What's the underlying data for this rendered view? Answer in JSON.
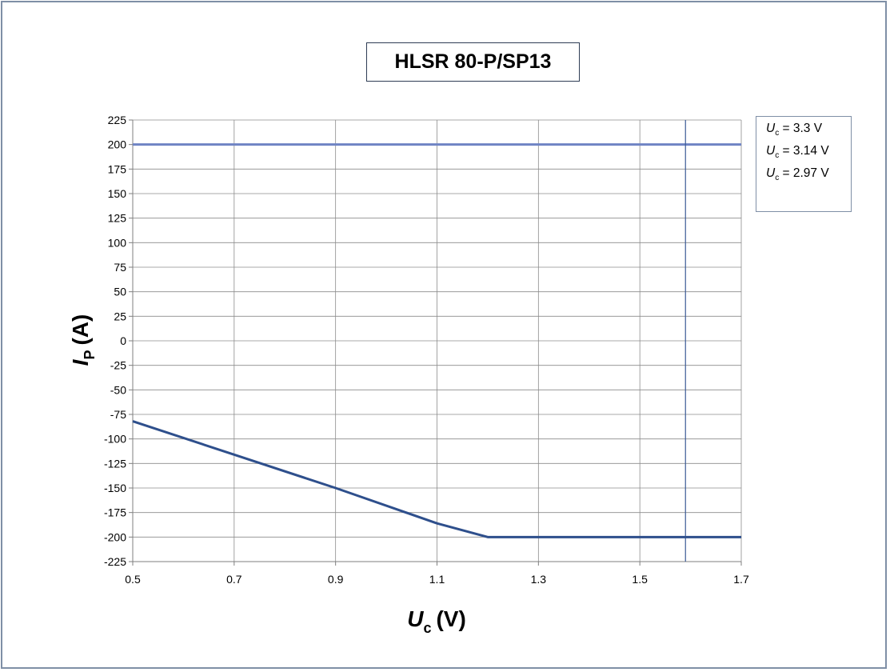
{
  "chart_data": {
    "type": "line",
    "title": "HLSR 80-P/SP13",
    "xlabel": {
      "symbol": "U",
      "subscript": "c",
      "unit": "(V)"
    },
    "ylabel": {
      "symbol": "I",
      "subscript": "P",
      "unit": "(A)"
    },
    "xlim": [
      0.5,
      1.7
    ],
    "ylim": [
      -225,
      225
    ],
    "x_ticks": [
      "0.5",
      "0.7",
      "0.9",
      "1.1",
      "1.3",
      "1.5",
      "1.7"
    ],
    "y_ticks": [
      "225",
      "200",
      "175",
      "150",
      "125",
      "100",
      "75",
      "50",
      "25",
      "0",
      "-25",
      "-50",
      "-75",
      "-100",
      "-125",
      "-150",
      "-175",
      "-200",
      "-225"
    ],
    "grid": true,
    "legend_position": "right",
    "legend": [
      {
        "symbol": "U",
        "subscript": "c",
        "text": " = 3.3 V"
      },
      {
        "symbol": "U",
        "subscript": "c",
        "text": " = 3.14 V"
      },
      {
        "symbol": "U",
        "subscript": "c",
        "text": " = 2.97 V"
      }
    ],
    "series": [
      {
        "color": "#6f84c4",
        "width": 3,
        "points": [
          [
            0.5,
            200
          ],
          [
            1.7,
            200
          ]
        ]
      },
      {
        "color": "#3a5a96",
        "width": 1.2,
        "points": [
          [
            1.59,
            225
          ],
          [
            1.59,
            -225
          ]
        ]
      },
      {
        "color": "#2e4f8c",
        "width": 3,
        "points": [
          [
            0.5,
            -82
          ],
          [
            0.7,
            -116
          ],
          [
            0.9,
            -150
          ],
          [
            1.1,
            -186
          ],
          [
            1.2,
            -200
          ],
          [
            1.7,
            -200
          ]
        ]
      }
    ]
  }
}
